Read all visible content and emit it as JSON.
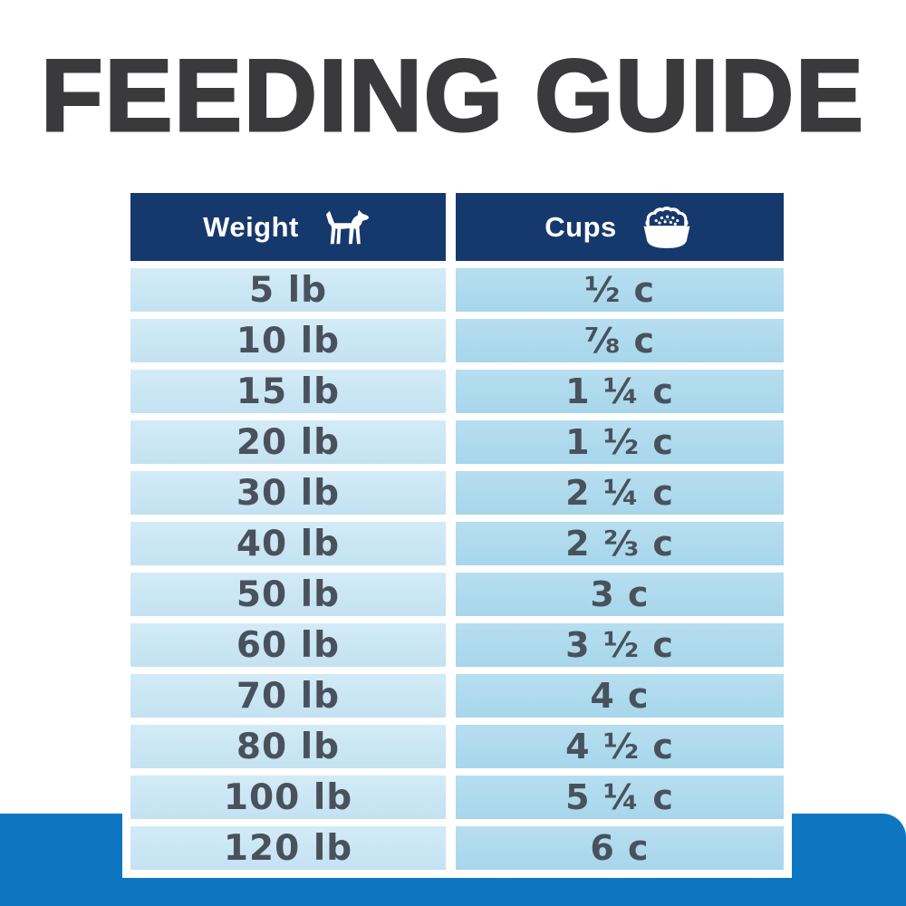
{
  "title": "FEEDING GUIDE",
  "colors": {
    "header_navy": "#16396d",
    "weight_cell_blue": "#cbe7f5",
    "cups_cell_blue": "#abd9ec",
    "bottom_band_blue": "#0e76c1",
    "title_charcoal": "#3a3a3c",
    "cell_text": "#49525c"
  },
  "table": {
    "columns": [
      {
        "label": "Weight",
        "icon": "dog-icon"
      },
      {
        "label": "Cups",
        "icon": "dog-bowl-icon"
      }
    ],
    "rows": [
      {
        "weight": "5 lb",
        "cups": "½ c"
      },
      {
        "weight": "10 lb",
        "cups": "⅞ c"
      },
      {
        "weight": "15 lb",
        "cups": "1 ¼ c"
      },
      {
        "weight": "20 lb",
        "cups": "1 ½ c"
      },
      {
        "weight": "30 lb",
        "cups": "2 ¼ c"
      },
      {
        "weight": "40 lb",
        "cups": "2 ⅔ c"
      },
      {
        "weight": "50 lb",
        "cups": "3 c"
      },
      {
        "weight": "60 lb",
        "cups": "3 ½ c"
      },
      {
        "weight": "70 lb",
        "cups": "4 c"
      },
      {
        "weight": "80 lb",
        "cups": "4 ½ c"
      },
      {
        "weight": "100 lb",
        "cups": "5 ¼ c"
      },
      {
        "weight": "120 lb",
        "cups": "6 c"
      }
    ]
  },
  "chart_data": {
    "type": "table",
    "title": "FEEDING GUIDE",
    "columns": [
      "Weight",
      "Cups"
    ],
    "rows": [
      [
        "5 lb",
        "½ c"
      ],
      [
        "10 lb",
        "⅞ c"
      ],
      [
        "15 lb",
        "1 ¼ c"
      ],
      [
        "20 lb",
        "1 ½ c"
      ],
      [
        "30 lb",
        "2 ¼ c"
      ],
      [
        "40 lb",
        "2 ⅔ c"
      ],
      [
        "50 lb",
        "3 c"
      ],
      [
        "60 lb",
        "3 ½ c"
      ],
      [
        "70 lb",
        "4 c"
      ],
      [
        "80 lb",
        "4 ½ c"
      ],
      [
        "100 lb",
        "5 ¼ c"
      ],
      [
        "120 lb",
        "6 c"
      ]
    ]
  }
}
